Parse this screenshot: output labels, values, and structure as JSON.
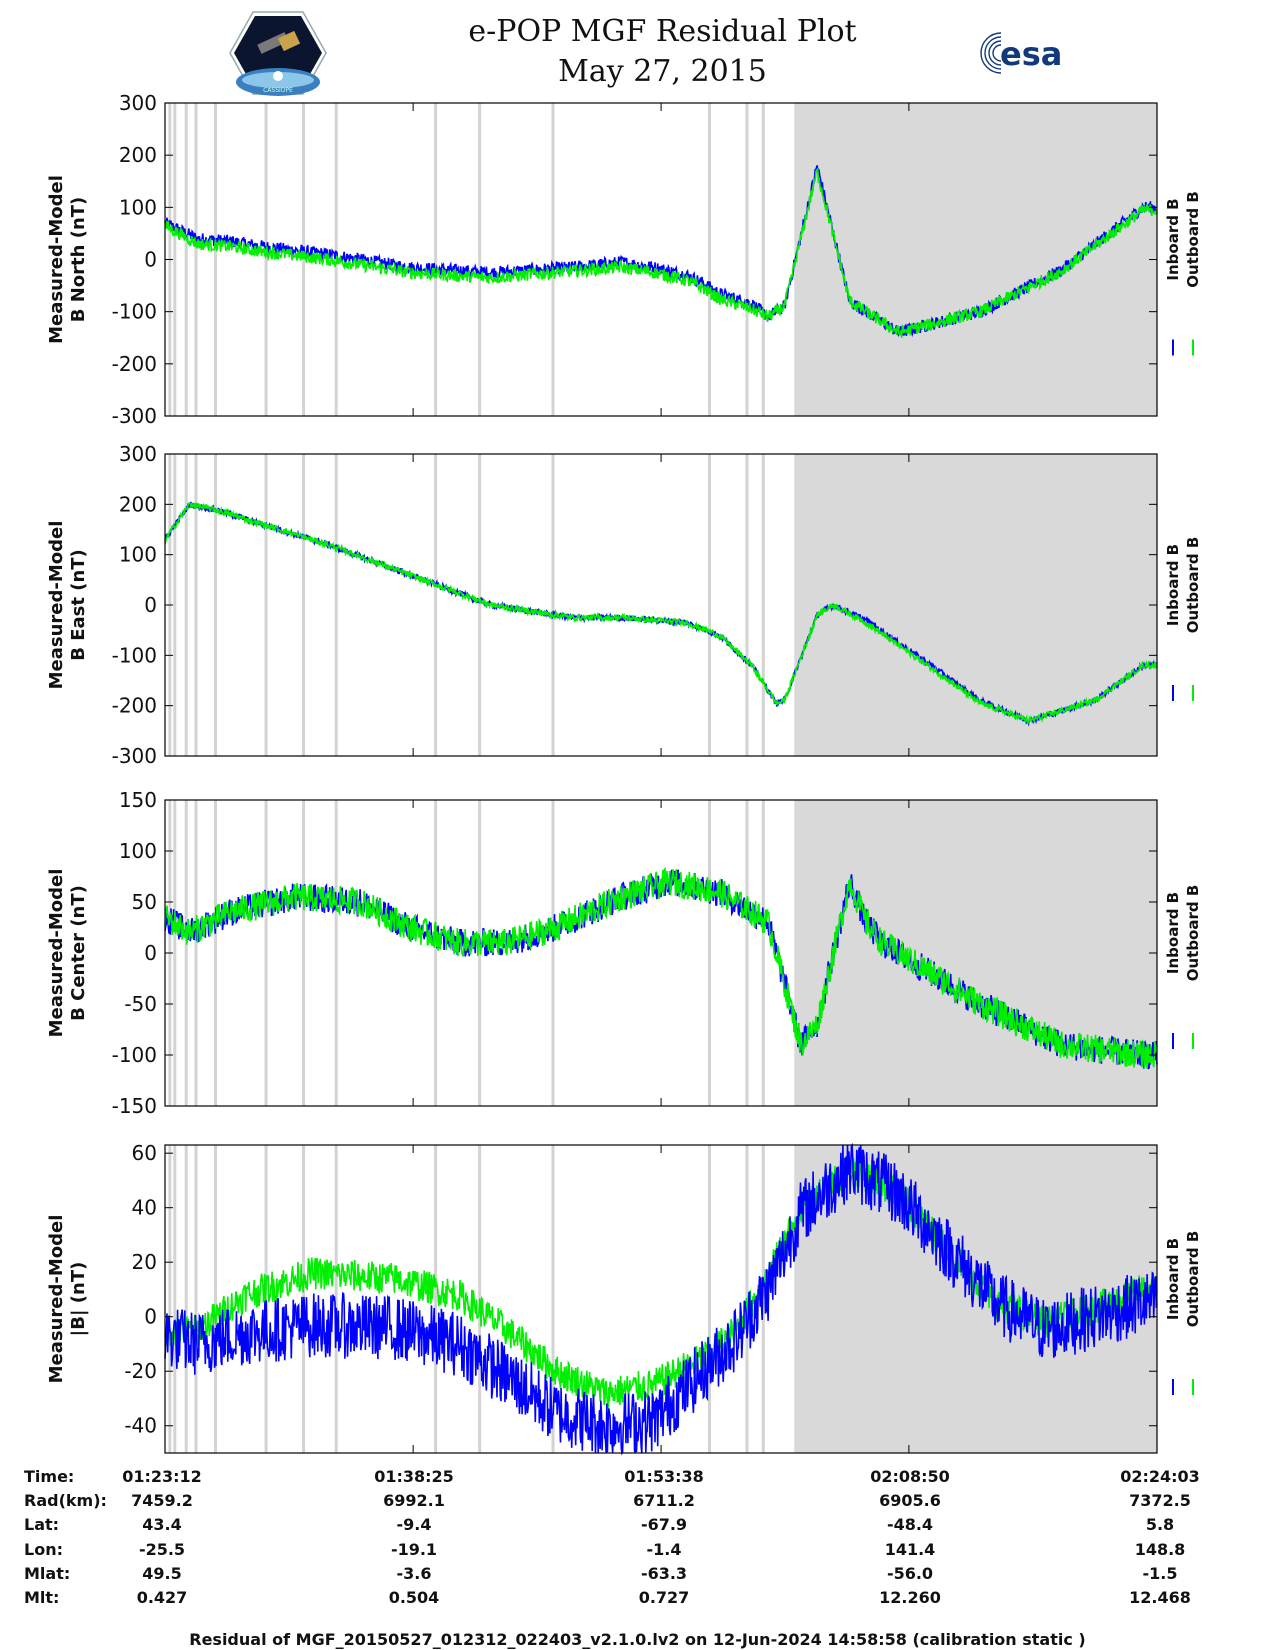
{
  "header": {
    "title_line1": "e-POP MGF Residual Plot",
    "title_line2": "May 27, 2015",
    "left_logo": "cassiope-mission-logo",
    "left_logo_text": "CASSIOPE",
    "right_logo": "esa-logo",
    "right_logo_text": "esa"
  },
  "colors": {
    "inboard": "#0000ff",
    "outboard": "#00ee00",
    "shade": "#d9d9d9",
    "gap_line": "#d3d3d3"
  },
  "chart_data": [
    {
      "type": "line",
      "ylabel_line1": "Measured-Model",
      "ylabel_line2": "B North (nT)",
      "ylim": [
        -300,
        300
      ],
      "yticks": [
        -300,
        -200,
        -100,
        0,
        100,
        200,
        300
      ],
      "legend": [
        "Inboard B",
        "Outboard B"
      ],
      "legend_position": "right",
      "x_minutes": [
        0,
        2,
        4,
        6,
        10,
        15,
        20,
        25,
        28,
        30,
        32,
        33,
        34,
        35,
        36,
        37,
        38,
        40,
        42,
        45,
        50,
        55,
        60
      ],
      "series": [
        {
          "name": "Inboard B",
          "values": [
            70,
            40,
            35,
            25,
            10,
            -15,
            -25,
            -15,
            -5,
            -15,
            -30,
            -45,
            -65,
            -75,
            -85,
            -110,
            -90,
            180,
            -80,
            -140,
            -100,
            -20,
            100
          ],
          "noise": 12
        },
        {
          "name": "Outboard B",
          "values": [
            65,
            30,
            25,
            15,
            0,
            -25,
            -35,
            -22,
            -15,
            -25,
            -40,
            -55,
            -75,
            -85,
            -95,
            -110,
            -90,
            170,
            -80,
            -140,
            -100,
            -22,
            95
          ],
          "noise": 12
        }
      ]
    },
    {
      "type": "line",
      "ylabel_line1": "Measured-Model",
      "ylabel_line2": "B East (nT)",
      "ylim": [
        -300,
        300
      ],
      "yticks": [
        -300,
        -200,
        -100,
        0,
        100,
        200,
        300
      ],
      "legend": [
        "Inboard B",
        "Outboard B"
      ],
      "legend_position": "right",
      "x_minutes": [
        0,
        1.5,
        3,
        6,
        10,
        15,
        20,
        25,
        28,
        32,
        34,
        36,
        37,
        37.5,
        38,
        40,
        41,
        43,
        47,
        50,
        53,
        57,
        60
      ],
      "series": [
        {
          "name": "Inboard B",
          "values": [
            130,
            200,
            190,
            160,
            120,
            60,
            0,
            -25,
            -25,
            -35,
            -60,
            -120,
            -170,
            -195,
            -190,
            -20,
            0,
            -30,
            -120,
            -190,
            -230,
            -190,
            -120
          ],
          "noise": 6
        },
        {
          "name": "Outboard B",
          "values": [
            130,
            200,
            190,
            160,
            120,
            60,
            0,
            -25,
            -25,
            -35,
            -60,
            -120,
            -170,
            -195,
            -190,
            -20,
            0,
            -35,
            -125,
            -195,
            -230,
            -190,
            -120
          ],
          "noise": 6
        }
      ]
    },
    {
      "type": "line",
      "ylabel_line1": "Measured-Model",
      "ylabel_line2": "B Center (nT)",
      "ylim": [
        -150,
        150
      ],
      "yticks": [
        -150,
        -100,
        -50,
        0,
        50,
        100,
        150
      ],
      "legend": [
        "Inboard B",
        "Outboard B"
      ],
      "legend_position": "right",
      "x_minutes": [
        0,
        1.5,
        4,
        8,
        12,
        15,
        18,
        21,
        24,
        28,
        31,
        34,
        37,
        38,
        39,
        40,
        42,
        43,
        44,
        46,
        50,
        55,
        60
      ],
      "series": [
        {
          "name": "Inboard B",
          "values": [
            35,
            20,
            40,
            55,
            50,
            25,
            10,
            10,
            25,
            55,
            70,
            60,
            30,
            -30,
            -90,
            -70,
            70,
            30,
            10,
            -10,
            -50,
            -90,
            -100
          ],
          "noise": 14
        },
        {
          "name": "Outboard B",
          "values": [
            35,
            20,
            40,
            55,
            50,
            25,
            10,
            10,
            25,
            55,
            70,
            60,
            30,
            -30,
            -90,
            -70,
            70,
            30,
            10,
            -10,
            -50,
            -90,
            -100
          ],
          "noise": 14
        }
      ]
    },
    {
      "type": "line",
      "ylabel_line1": "Measured-Model",
      "ylabel_line2": "|B| (nT)",
      "ylim": [
        -50,
        63
      ],
      "yticks": [
        -40,
        -20,
        0,
        20,
        40,
        60
      ],
      "legend": [
        "Inboard B",
        "Outboard B"
      ],
      "legend_position": "right",
      "x_minutes": [
        0,
        2,
        5,
        9,
        14,
        18,
        21,
        24,
        27,
        30,
        33,
        35,
        37,
        39,
        42,
        45,
        48,
        51,
        54,
        57,
        60
      ],
      "series": [
        {
          "name": "Outboard B",
          "values": [
            -5,
            -5,
            8,
            16,
            14,
            8,
            -5,
            -20,
            -28,
            -25,
            -15,
            -5,
            15,
            40,
            55,
            45,
            25,
            5,
            -2,
            3,
            10
          ],
          "noise": 6
        },
        {
          "name": "Inboard B",
          "values": [
            -7,
            -10,
            -6,
            -3,
            -4,
            -10,
            -22,
            -35,
            -40,
            -38,
            -20,
            -8,
            10,
            38,
            55,
            45,
            25,
            5,
            -5,
            0,
            5
          ],
          "noise": 12
        }
      ]
    }
  ],
  "x_axis": {
    "x_minutes_range": [
      0,
      60.85
    ],
    "shaded_region_minutes": [
      38.6,
      60.85
    ],
    "gap_lines_minutes": [
      0.3,
      0.6,
      1.3,
      1.9,
      3.1,
      6.2,
      8.5,
      10.5,
      16.6,
      19.3,
      23.8,
      33.4,
      35.7,
      36.7
    ],
    "tick_minutes": [
      0,
      15.22,
      30.43,
      45.63,
      60.85
    ]
  },
  "orbit_table": {
    "labels": [
      "Time:",
      "Rad(km):",
      "Lat:",
      "Lon:",
      "Mlat:",
      "Mlt:"
    ],
    "columns": [
      [
        "01:23:12",
        "7459.2",
        "43.4",
        "-25.5",
        "49.5",
        "0.427"
      ],
      [
        "01:38:25",
        "6992.1",
        "-9.4",
        "-19.1",
        "-3.6",
        "0.504"
      ],
      [
        "01:53:38",
        "6711.2",
        "-67.9",
        "-1.4",
        "-63.3",
        "0.727"
      ],
      [
        "02:08:50",
        "6905.6",
        "-48.4",
        "141.4",
        "-56.0",
        "12.260"
      ],
      [
        "02:24:03",
        "7372.5",
        "5.8",
        "148.8",
        "-1.5",
        "12.468"
      ]
    ]
  },
  "footer": "Residual of MGF_20150527_012312_022403_v2.1.0.lv2 on 12-Jun-2024 14:58:58 (calibration static )"
}
